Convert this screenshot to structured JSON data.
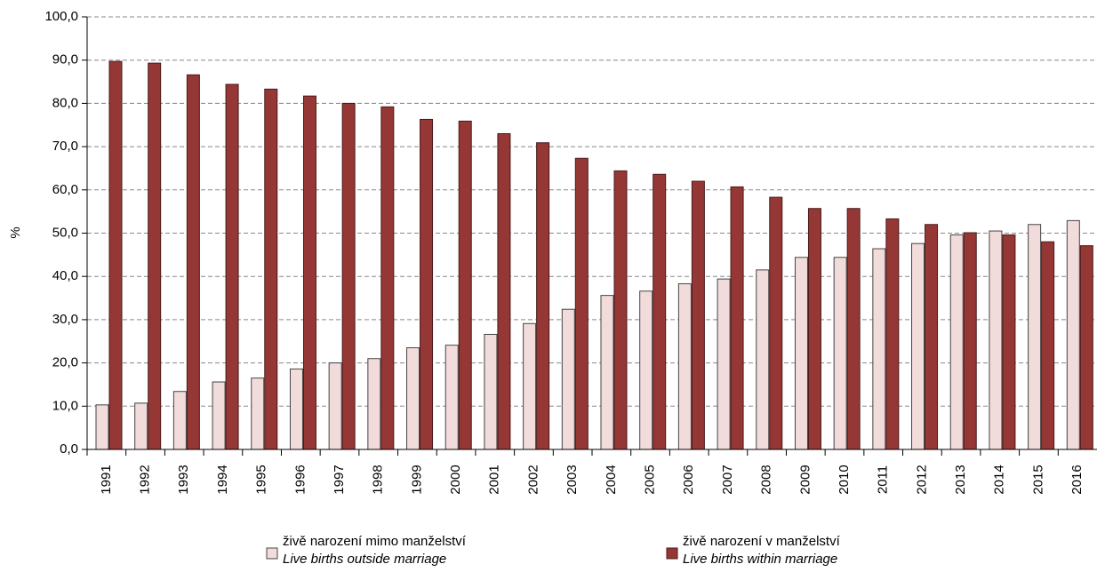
{
  "chart_data": {
    "type": "bar",
    "y_label": "%",
    "categories": [
      "1991",
      "1992",
      "1993",
      "1994",
      "1995",
      "1996",
      "1997",
      "1998",
      "1999",
      "2000",
      "2001",
      "2002",
      "2003",
      "2004",
      "2005",
      "2006",
      "2007",
      "2008",
      "2009",
      "2010",
      "2011",
      "2012",
      "2013",
      "2014",
      "2015",
      "2016"
    ],
    "series": [
      {
        "name": "živě narození mimo manželství",
        "name_en": "Live births outside marriage",
        "color": "#f2dcdb",
        "values": [
          10.3,
          10.7,
          13.4,
          15.6,
          16.5,
          18.6,
          20.0,
          21.0,
          23.5,
          24.1,
          26.6,
          29.1,
          32.4,
          35.6,
          36.6,
          38.3,
          39.4,
          41.5,
          44.4,
          44.4,
          46.4,
          47.6,
          49.6,
          50.5,
          52.0,
          52.9
        ]
      },
      {
        "name": "živě narození v  manželství",
        "name_en": "Live births within marriage",
        "color": "#953735",
        "values": [
          89.7,
          89.3,
          86.6,
          84.4,
          83.3,
          81.7,
          80.0,
          79.2,
          76.3,
          75.9,
          73.0,
          70.9,
          67.3,
          64.4,
          63.6,
          62.0,
          60.7,
          58.3,
          55.7,
          55.7,
          53.3,
          52.0,
          50.1,
          49.6,
          48.0,
          47.1
        ]
      }
    ],
    "ylim": [
      0,
      100
    ],
    "yticks": [
      {
        "value": 0,
        "label": "0,0"
      },
      {
        "value": 10,
        "label": "10,0"
      },
      {
        "value": 20,
        "label": "20,0"
      },
      {
        "value": 30,
        "label": "30,0"
      },
      {
        "value": 40,
        "label": "40,0"
      },
      {
        "value": 50,
        "label": "50,0"
      },
      {
        "value": 60,
        "label": "60,0"
      },
      {
        "value": 70,
        "label": "70,0"
      },
      {
        "value": 80,
        "label": "80,0"
      },
      {
        "value": 90,
        "label": "90,0"
      },
      {
        "value": 100,
        "label": "100,0"
      }
    ],
    "grid": true
  }
}
